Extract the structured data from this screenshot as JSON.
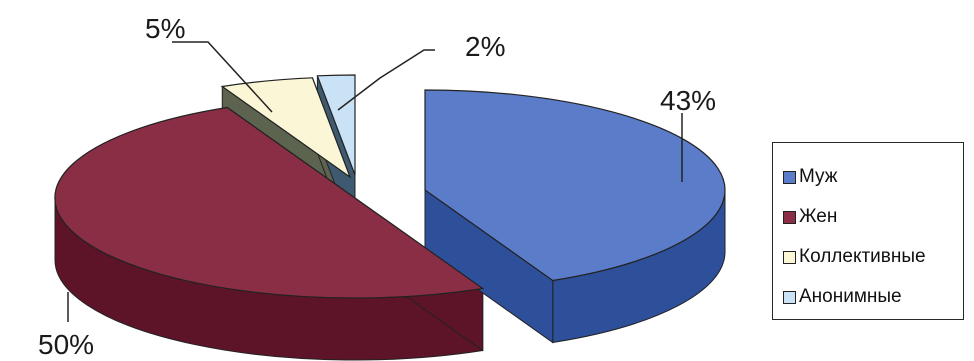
{
  "chart_data": {
    "type": "pie",
    "style": "3d-exploded",
    "categories": [
      "Муж",
      "Жен",
      "Коллективные",
      "Анонимные"
    ],
    "values": [
      43,
      50,
      5,
      2
    ],
    "data_labels": [
      "43%",
      "50%",
      "5%",
      "2%"
    ],
    "colors": [
      "#5b7cc9",
      "#8a2e45",
      "#fbf6d6",
      "#c9e2f6"
    ],
    "side_colors": [
      "#2e4f9a",
      "#5e1428",
      "#5c6450",
      "#3f5a70"
    ],
    "legend_position": "right"
  }
}
